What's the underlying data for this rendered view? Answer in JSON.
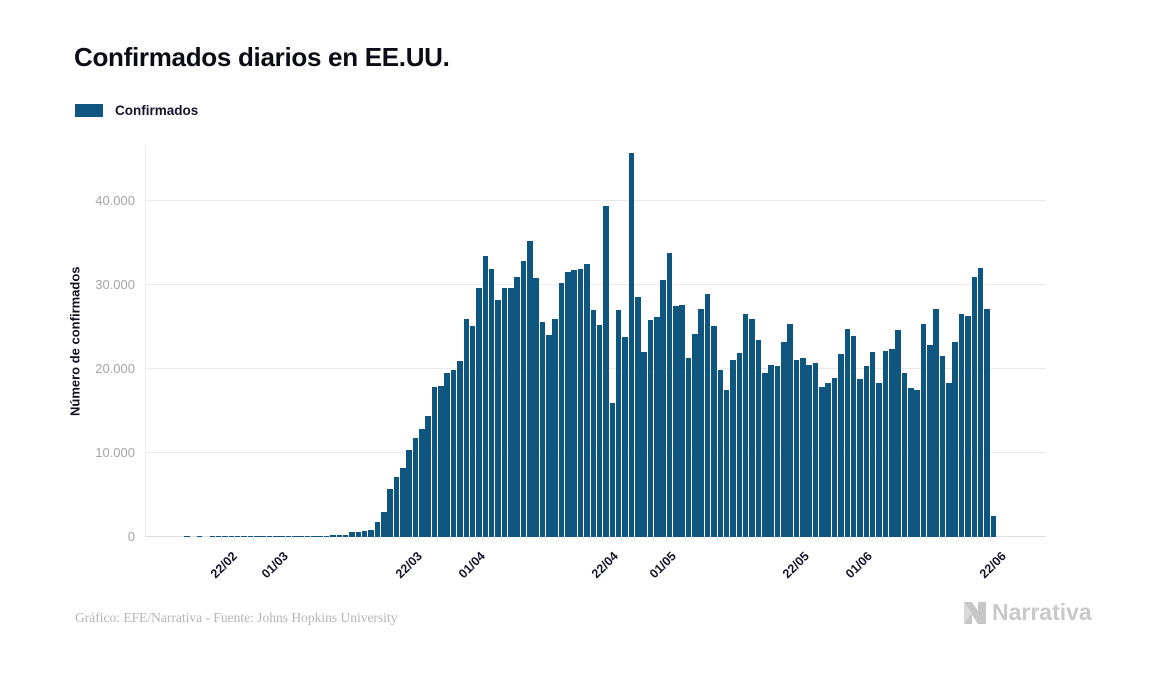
{
  "header": {
    "title": "Confirmados diarios en EE.UU."
  },
  "legend": {
    "items": [
      {
        "label": "Confirmados",
        "color": "#0E567F"
      }
    ]
  },
  "footer": {
    "credit": "Gráfico: EFE/Narrativa - Fuente: Johns Hopkins University",
    "logo_text": "Narrativa",
    "logo_icon": "narrativa-n-mark"
  },
  "chart_data": {
    "type": "bar",
    "title": "Confirmados diarios en EE.UU.",
    "xlabel": "",
    "ylabel": "Número de confirmados",
    "legend_entries": [
      "Confirmados"
    ],
    "legend_position": "top-left",
    "bar_color": "#0E567F",
    "grid": "horizontal",
    "ylim": [
      0,
      46500
    ],
    "y_ticks": [
      {
        "value": 0,
        "label": "0"
      },
      {
        "value": 10000,
        "label": "10.000"
      },
      {
        "value": 20000,
        "label": "20.000"
      },
      {
        "value": 30000,
        "label": "30.000"
      },
      {
        "value": 40000,
        "label": "40.000"
      }
    ],
    "x_ticks": [
      "22/02",
      "01/03",
      "22/03",
      "01/04",
      "22/04",
      "01/05",
      "22/05",
      "01/06",
      "22/06"
    ],
    "categories": [
      "10/02",
      "11/02",
      "12/02",
      "13/02",
      "14/02",
      "15/02",
      "16/02",
      "17/02",
      "18/02",
      "19/02",
      "20/02",
      "21/02",
      "22/02",
      "23/02",
      "24/02",
      "25/02",
      "26/02",
      "27/02",
      "28/02",
      "29/02",
      "01/03",
      "02/03",
      "03/03",
      "04/03",
      "05/03",
      "06/03",
      "07/03",
      "08/03",
      "09/03",
      "10/03",
      "11/03",
      "12/03",
      "13/03",
      "14/03",
      "15/03",
      "16/03",
      "17/03",
      "18/03",
      "19/03",
      "20/03",
      "21/03",
      "22/03",
      "23/03",
      "24/03",
      "25/03",
      "26/03",
      "27/03",
      "28/03",
      "29/03",
      "30/03",
      "31/03",
      "01/04",
      "02/04",
      "03/04",
      "04/04",
      "05/04",
      "06/04",
      "07/04",
      "08/04",
      "09/04",
      "10/04",
      "11/04",
      "12/04",
      "13/04",
      "14/04",
      "15/04",
      "16/04",
      "17/04",
      "18/04",
      "19/04",
      "20/04",
      "21/04",
      "22/04",
      "23/04",
      "24/04",
      "25/04",
      "26/04",
      "27/04",
      "28/04",
      "29/04",
      "30/04",
      "01/05",
      "02/05",
      "03/05",
      "04/05",
      "05/05",
      "06/05",
      "07/05",
      "08/05",
      "09/05",
      "10/05",
      "11/05",
      "12/05",
      "13/05",
      "14/05",
      "15/05",
      "16/05",
      "17/05",
      "18/05",
      "19/05",
      "20/05",
      "21/05",
      "22/05",
      "23/05",
      "24/05",
      "25/05",
      "26/05",
      "27/05",
      "28/05",
      "29/05",
      "30/05",
      "31/05",
      "01/06",
      "02/06",
      "03/06",
      "04/06",
      "05/06",
      "06/06",
      "07/06",
      "08/06",
      "09/06",
      "10/06",
      "11/06",
      "12/06",
      "13/06",
      "14/06",
      "15/06",
      "16/06",
      "17/06",
      "18/06",
      "19/06",
      "20/06",
      "21/06",
      "22/06"
    ],
    "values": [
      0,
      0,
      0,
      0,
      0,
      0,
      1,
      0,
      1,
      0,
      2,
      5,
      6,
      2,
      4,
      5,
      6,
      3,
      5,
      8,
      20,
      24,
      20,
      31,
      68,
      75,
      119,
      114,
      100,
      194,
      299,
      277,
      575,
      580,
      727,
      823,
      1766,
      2988,
      5700,
      7200,
      8200,
      10400,
      11800,
      12900,
      14400,
      17800,
      18000,
      19500,
      19900,
      21000,
      26000,
      25100,
      29600,
      33400,
      31900,
      28200,
      29600,
      29700,
      31000,
      32800,
      35200,
      30800,
      25600,
      24000,
      26000,
      30200,
      31500,
      31800,
      31900,
      32500,
      27000,
      25200,
      39400,
      15900,
      27000,
      23800,
      45700,
      28600,
      22000,
      25800,
      26200,
      30600,
      33800,
      27500,
      27600,
      21300,
      24200,
      27200,
      28900,
      25100,
      19900,
      17500,
      21100,
      21900,
      26600,
      25900,
      23400,
      19500,
      20500,
      20300,
      23200,
      25400,
      21100,
      21300,
      20500,
      20700,
      17900,
      18300,
      18900,
      21800,
      24800,
      23900,
      18800,
      20300,
      22000,
      18300,
      22200,
      22400,
      24600,
      19500,
      17700,
      17500,
      25400,
      22800,
      27100,
      21500,
      18300,
      23200,
      26600,
      26300,
      31000,
      32000,
      27100,
      2500
    ]
  }
}
